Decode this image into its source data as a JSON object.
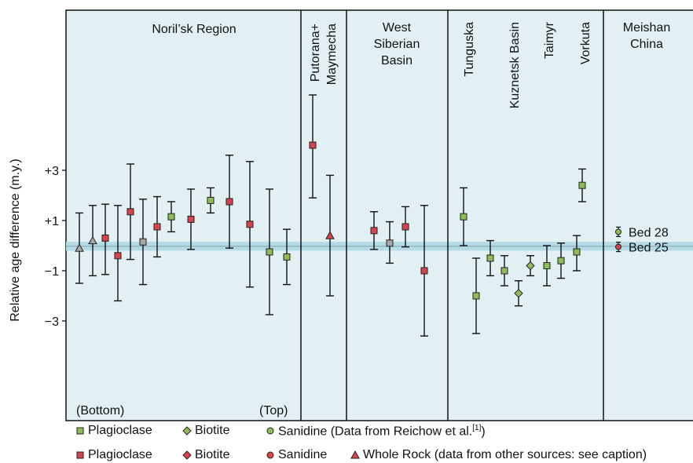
{
  "chart_data": {
    "type": "scatter",
    "subtype": "error-bar dot plot",
    "ylabel": "Relative age difference (m.y.)",
    "yticks": [
      {
        "value": 3,
        "label": "+3"
      },
      {
        "value": 1,
        "label": "+1"
      },
      {
        "value": -1,
        "label": "−1"
      },
      {
        "value": -3,
        "label": "−3"
      }
    ],
    "ylim": [
      -7,
      9
    ],
    "reference_band": [
      -0.2,
      0.15
    ],
    "panel_colors": {
      "background": "#e2f0f4",
      "band": "#b5dbe6",
      "band_line": "#8fb3bd"
    },
    "marker_colors": {
      "green": "#8fbc5a",
      "red": "#d8444b",
      "grey": "#a8a8a8"
    },
    "sections": [
      {
        "label": "Noril’sk Region",
        "orientation": "horizontal"
      },
      {
        "label": "Putorana+\nMaymecha",
        "orientation": "vertical"
      },
      {
        "label": "West\nSiberian\nBasin",
        "orientation": "horizontal"
      },
      {
        "label": "Tunguska",
        "orientation": "vertical"
      },
      {
        "label": "Kuznetsk Basin",
        "orientation": "vertical"
      },
      {
        "label": "Taimyr",
        "orientation": "vertical"
      },
      {
        "label": "Vorkuta",
        "orientation": "vertical"
      },
      {
        "label": "Meishan\nChina",
        "orientation": "horizontal"
      }
    ],
    "order_labels": {
      "bottom": "(Bottom)",
      "top": "(Top)"
    },
    "points": [
      {
        "x": 1,
        "y": -0.1,
        "low": -1.5,
        "high": 1.3,
        "marker": "triangle",
        "color": "grey"
      },
      {
        "x": 2,
        "y": 0.2,
        "low": -1.2,
        "high": 1.6,
        "marker": "triangle",
        "color": "grey"
      },
      {
        "x": 3,
        "y": 0.3,
        "low": -1.15,
        "high": 1.65,
        "marker": "square",
        "color": "red"
      },
      {
        "x": 4,
        "y": -0.4,
        "low": -2.2,
        "high": 1.6,
        "marker": "square",
        "color": "red"
      },
      {
        "x": 5,
        "y": 1.35,
        "low": -0.55,
        "high": 3.25,
        "marker": "square",
        "color": "red"
      },
      {
        "x": 6,
        "y": 0.15,
        "low": -1.55,
        "high": 1.85,
        "marker": "square",
        "color": "grey"
      },
      {
        "x": 7,
        "y": 0.75,
        "low": -0.45,
        "high": 1.95,
        "marker": "square",
        "color": "red"
      },
      {
        "x": 8,
        "y": 1.15,
        "low": 0.55,
        "high": 1.75,
        "marker": "square",
        "color": "green"
      },
      {
        "x": 9,
        "y": 1.05,
        "low": -0.15,
        "high": 2.25,
        "marker": "square",
        "color": "red"
      },
      {
        "x": 10,
        "y": 1.8,
        "low": 1.3,
        "high": 2.3,
        "marker": "square",
        "color": "green"
      },
      {
        "x": 11,
        "y": 1.75,
        "low": -0.1,
        "high": 3.6,
        "marker": "square",
        "color": "red"
      },
      {
        "x": 12,
        "y": 0.85,
        "low": -1.65,
        "high": 3.35,
        "marker": "square",
        "color": "red"
      },
      {
        "x": 13,
        "y": -0.25,
        "low": -2.75,
        "high": 2.25,
        "marker": "square",
        "color": "green"
      },
      {
        "x": 14,
        "y": -0.45,
        "low": -1.55,
        "high": 0.65,
        "marker": "square",
        "color": "green"
      },
      {
        "x": 15,
        "y": 4.0,
        "low": 1.9,
        "high": 6.0,
        "marker": "square",
        "color": "red"
      },
      {
        "x": 16,
        "y": 0.4,
        "low": -2.0,
        "high": 2.8,
        "marker": "triangle",
        "color": "red"
      },
      {
        "x": 17,
        "y": 0.6,
        "low": -0.15,
        "high": 1.35,
        "marker": "square",
        "color": "red"
      },
      {
        "x": 18,
        "y": 0.1,
        "low": -0.7,
        "high": 0.95,
        "marker": "square",
        "color": "grey"
      },
      {
        "x": 19,
        "y": 0.75,
        "low": -0.05,
        "high": 1.55,
        "marker": "square",
        "color": "red"
      },
      {
        "x": 20,
        "y": -1.0,
        "low": -3.6,
        "high": 1.6,
        "marker": "square",
        "color": "red"
      },
      {
        "x": 21,
        "y": 1.15,
        "low": 0.0,
        "high": 2.3,
        "marker": "square",
        "color": "green"
      },
      {
        "x": 22,
        "y": -2.0,
        "low": -3.5,
        "high": -0.5,
        "marker": "square",
        "color": "green"
      },
      {
        "x": 23,
        "y": -0.5,
        "low": -1.2,
        "high": 0.2,
        "marker": "square",
        "color": "green"
      },
      {
        "x": 24,
        "y": -1.0,
        "low": -1.6,
        "high": -0.4,
        "marker": "square",
        "color": "green"
      },
      {
        "x": 25,
        "y": -1.9,
        "low": -2.4,
        "high": -1.4,
        "marker": "diamond",
        "color": "green"
      },
      {
        "x": 26,
        "y": -0.8,
        "low": -1.2,
        "high": -0.4,
        "marker": "diamond",
        "color": "green"
      },
      {
        "x": 27,
        "y": -0.8,
        "low": -1.6,
        "high": 0.0,
        "marker": "square",
        "color": "green"
      },
      {
        "x": 28,
        "y": -0.6,
        "low": -1.3,
        "high": 0.1,
        "marker": "square",
        "color": "green"
      },
      {
        "x": 29,
        "y": -0.25,
        "low": -1.0,
        "high": 0.4,
        "marker": "square",
        "color": "green"
      },
      {
        "x": 30,
        "y": 2.4,
        "low": 1.75,
        "high": 3.05,
        "marker": "square",
        "color": "green"
      }
    ],
    "meishan_beds": [
      {
        "label": "Bed 28",
        "y": 0.55,
        "color": "green"
      },
      {
        "label": "Bed 25",
        "y": -0.05,
        "color": "red"
      }
    ],
    "legend": [
      {
        "marker": "square",
        "color": "green",
        "label": "Plagioclase"
      },
      {
        "marker": "diamond",
        "color": "green",
        "label": "Biotite"
      },
      {
        "marker": "circle",
        "color": "green",
        "label": "Sanidine (Data from Reichow et al.",
        "sup": "[1]",
        "suffix": ")"
      },
      {
        "marker": "square",
        "color": "red",
        "label": "Plagioclase"
      },
      {
        "marker": "diamond",
        "color": "red",
        "label": "Biotite"
      },
      {
        "marker": "circle",
        "color": "red",
        "label": "Sanidine"
      },
      {
        "marker": "triangle",
        "color": "red",
        "label": "Whole Rock (data from other sources: see caption)"
      }
    ]
  }
}
